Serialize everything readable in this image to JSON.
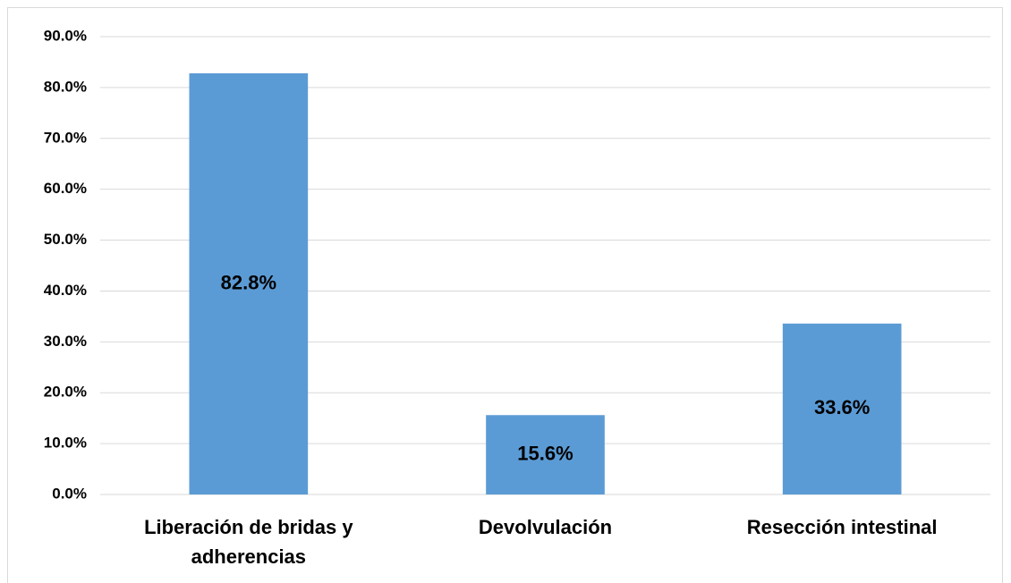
{
  "chart_data": {
    "type": "bar",
    "categories": [
      "Liberación de bridas y adherencias",
      "Devolvulación",
      "Resección intestinal"
    ],
    "values": [
      82.8,
      15.6,
      33.6
    ],
    "value_labels": [
      "82.8%",
      "15.6%",
      "33.6%"
    ],
    "color": "#5b9bd5",
    "ylim": [
      0,
      90
    ],
    "yticks": [
      {
        "value": 0,
        "label": "0.0%"
      },
      {
        "value": 10,
        "label": "10.0%"
      },
      {
        "value": 20,
        "label": "20.0%"
      },
      {
        "value": 30,
        "label": "30.0%"
      },
      {
        "value": 40,
        "label": "40.0%"
      },
      {
        "value": 50,
        "label": "50.0%"
      },
      {
        "value": 60,
        "label": "60.0%"
      },
      {
        "value": 70,
        "label": "70.0%"
      },
      {
        "value": 80,
        "label": "80.0%"
      },
      {
        "value": 90,
        "label": "90.0%"
      }
    ],
    "grid": true
  }
}
